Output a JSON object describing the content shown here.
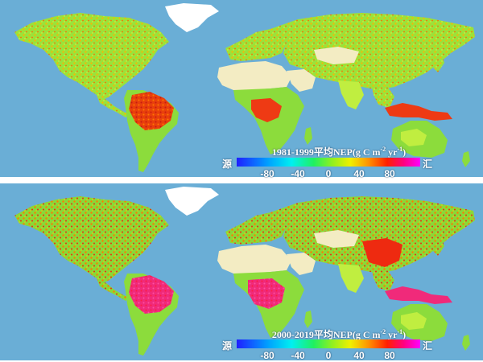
{
  "panels": [
    {
      "title_main": "1981-1999平均NEP",
      "title_unit": "(g C m",
      "title_sup1": "-2",
      "title_mid": " yr",
      "title_sup2": "-1",
      "title_end": ")"
    },
    {
      "title_main": "2000-2019平均NEP",
      "title_unit": "(g C m",
      "title_sup1": "-2",
      "title_mid": " yr",
      "title_sup2": "-1",
      "title_end": ")"
    }
  ],
  "legend": {
    "left_label": "源",
    "right_label": "汇",
    "ticks": [
      "-80",
      "-40",
      "0",
      "40",
      "80"
    ],
    "tick_values": [
      -80,
      -40,
      0,
      40,
      80
    ],
    "range": [
      -120,
      120
    ]
  },
  "colors": {
    "ocean": "#6aaed6",
    "desert": "#f3ecc3",
    "ice": "#ffffff",
    "land_base": "#8cdc3c",
    "land_mid": "#c0ee40",
    "sink_moderate": "#ff8a00",
    "sink_strong": "#ee2a10",
    "sink_very_strong_recent": "#ff2a8a"
  }
}
